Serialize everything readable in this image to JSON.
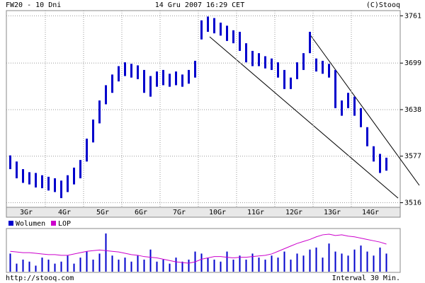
{
  "header": {
    "left": "FW20 - 10 Dni",
    "center": "14 Gru 2007 16:29 CET",
    "right": "(C)Stooq"
  },
  "chart_data": {
    "type": "candlestick",
    "categories": [
      "3Gr",
      "4Gr",
      "5Gr",
      "6Gr",
      "7Gr",
      "10Gr",
      "11Gr",
      "12Gr",
      "13Gr",
      "14Gr"
    ],
    "bars_per_category": 6,
    "color": "#0000cc",
    "high": [
      3578,
      3570,
      3560,
      3556,
      3555,
      3552,
      3550,
      3548,
      3545,
      3552,
      3562,
      3572,
      3600,
      3625,
      3650,
      3670,
      3684,
      3695,
      3700,
      3698,
      3696,
      3690,
      3682,
      3688,
      3690,
      3685,
      3688,
      3684,
      3690,
      3702,
      3755,
      3760,
      3758,
      3752,
      3748,
      3742,
      3740,
      3725,
      3715,
      3712,
      3708,
      3705,
      3700,
      3690,
      3680,
      3700,
      3712,
      3740,
      3705,
      3702,
      3698,
      3690,
      3650,
      3660,
      3655,
      3640,
      3615,
      3590,
      3580,
      3575
    ],
    "low": [
      3560,
      3548,
      3542,
      3540,
      3536,
      3535,
      3532,
      3530,
      3522,
      3530,
      3540,
      3548,
      3570,
      3595,
      3620,
      3645,
      3660,
      3675,
      3682,
      3680,
      3678,
      3660,
      3655,
      3668,
      3670,
      3668,
      3670,
      3668,
      3672,
      3680,
      3730,
      3740,
      3738,
      3735,
      3728,
      3725,
      3715,
      3700,
      3695,
      3695,
      3692,
      3690,
      3680,
      3665,
      3665,
      3678,
      3690,
      3712,
      3688,
      3685,
      3680,
      3640,
      3630,
      3640,
      3630,
      3615,
      3590,
      3570,
      3555,
      3558
    ],
    "ylim": [
      3510,
      3765
    ],
    "yticks": [
      3761,
      3699,
      3638,
      3577,
      3516
    ],
    "grid": true,
    "volume": {
      "name": "Wolumen",
      "color": "#0000cc",
      "values": [
        45,
        20,
        30,
        25,
        15,
        35,
        30,
        20,
        25,
        40,
        20,
        35,
        50,
        30,
        45,
        95,
        40,
        30,
        35,
        25,
        40,
        30,
        55,
        25,
        30,
        20,
        35,
        25,
        30,
        50,
        45,
        35,
        30,
        25,
        50,
        30,
        40,
        30,
        45,
        35,
        30,
        40,
        35,
        50,
        30,
        45,
        40,
        55,
        60,
        35,
        70,
        50,
        45,
        40,
        55,
        65,
        50,
        40,
        60,
        45
      ]
    },
    "lop": {
      "name": "LOP",
      "color": "#cc00cc",
      "values": [
        30,
        29,
        28,
        28,
        27,
        26,
        25,
        25,
        24,
        24,
        26,
        28,
        30,
        31,
        32,
        31,
        30,
        29,
        27,
        25,
        24,
        22,
        21,
        20,
        18,
        16,
        14,
        13,
        12,
        14,
        18,
        20,
        22,
        22,
        21,
        20,
        21,
        21,
        22,
        23,
        24,
        26,
        30,
        34,
        38,
        42,
        45,
        48,
        52,
        55,
        56,
        54,
        55,
        53,
        52,
        50,
        48,
        46,
        44,
        41
      ]
    }
  },
  "footer": {
    "left": "http://stooq.com",
    "right": "Interwal 30 Min."
  }
}
